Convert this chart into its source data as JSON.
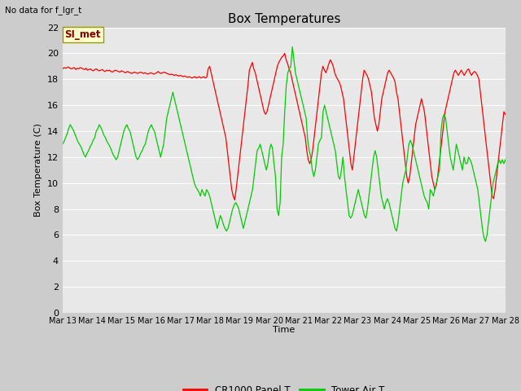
{
  "title": "Box Temperatures",
  "ylabel": "Box Temperature (C)",
  "xlabel": "Time",
  "top_left_text": "No data for f_lgr_t",
  "annotation_text": "SI_met",
  "annotation_bg": "#ffffcc",
  "annotation_border": "#999900",
  "annotation_text_color": "#880000",
  "ylim": [
    0,
    22
  ],
  "yticks": [
    0,
    2,
    4,
    6,
    8,
    10,
    12,
    14,
    16,
    18,
    20,
    22
  ],
  "fig_bg": "#cccccc",
  "axes_bg": "#e8e8e8",
  "grid_color": "#ffffff",
  "line1_color": "#ff0000",
  "line2_color": "#00cc00",
  "legend_label1": "CR1000 Panel T",
  "legend_label2": "Tower Air T",
  "xtick_labels": [
    "Mar 13",
    "Mar 14",
    "Mar 15",
    "Mar 16",
    "Mar 17",
    "Mar 18",
    "Mar 19",
    "Mar 20",
    "Mar 21",
    "Mar 22",
    "Mar 23",
    "Mar 24",
    "Mar 25",
    "Mar 26",
    "Mar 27",
    "Mar 28"
  ],
  "red_data": [
    18.8,
    18.9,
    18.85,
    18.9,
    18.95,
    18.85,
    18.8,
    18.85,
    18.9,
    18.75,
    18.85,
    18.8,
    18.9,
    18.85,
    18.8,
    18.75,
    18.85,
    18.7,
    18.75,
    18.8,
    18.7,
    18.65,
    18.75,
    18.8,
    18.7,
    18.65,
    18.7,
    18.75,
    18.65,
    18.6,
    18.7,
    18.65,
    18.7,
    18.6,
    18.55,
    18.65,
    18.7,
    18.65,
    18.6,
    18.55,
    18.65,
    18.6,
    18.55,
    18.5,
    18.6,
    18.55,
    18.5,
    18.45,
    18.5,
    18.55,
    18.5,
    18.45,
    18.5,
    18.55,
    18.5,
    18.45,
    18.5,
    18.45,
    18.4,
    18.45,
    18.5,
    18.45,
    18.4,
    18.45,
    18.5,
    18.6,
    18.5,
    18.45,
    18.5,
    18.55,
    18.5,
    18.45,
    18.4,
    18.35,
    18.4,
    18.35,
    18.3,
    18.35,
    18.3,
    18.25,
    18.3,
    18.25,
    18.2,
    18.25,
    18.2,
    18.15,
    18.2,
    18.15,
    18.1,
    18.15,
    18.2,
    18.1,
    18.15,
    18.2,
    18.1,
    18.15,
    18.2,
    18.1,
    18.15,
    18.8,
    19.0,
    18.5,
    18.0,
    17.5,
    17.0,
    16.5,
    16.0,
    15.5,
    15.0,
    14.5,
    14.0,
    13.5,
    12.5,
    11.5,
    10.5,
    9.5,
    9.0,
    8.7,
    9.5,
    10.5,
    11.5,
    12.5,
    13.5,
    14.5,
    15.5,
    16.5,
    17.5,
    18.7,
    19.0,
    19.3,
    18.8,
    18.5,
    18.0,
    17.5,
    17.0,
    16.5,
    16.0,
    15.5,
    15.3,
    15.5,
    16.0,
    16.5,
    17.0,
    17.5,
    18.0,
    18.5,
    19.0,
    19.3,
    19.5,
    19.7,
    19.8,
    20.0,
    19.5,
    19.2,
    18.8,
    18.5,
    18.0,
    17.5,
    17.0,
    16.5,
    16.0,
    15.5,
    15.0,
    14.5,
    14.0,
    13.5,
    12.5,
    11.8,
    11.5,
    11.8,
    12.5,
    13.5,
    14.5,
    15.5,
    16.5,
    17.5,
    18.5,
    19.0,
    18.7,
    18.5,
    18.8,
    19.2,
    19.5,
    19.3,
    19.0,
    18.5,
    18.2,
    18.0,
    17.8,
    17.5,
    17.0,
    16.5,
    15.5,
    14.5,
    13.5,
    12.5,
    11.5,
    11.0,
    12.0,
    13.0,
    14.0,
    15.0,
    16.0,
    17.0,
    18.0,
    18.7,
    18.5,
    18.3,
    18.0,
    17.5,
    17.0,
    16.0,
    15.0,
    14.5,
    14.0,
    14.5,
    15.5,
    16.5,
    17.0,
    17.5,
    18.0,
    18.5,
    18.7,
    18.5,
    18.3,
    18.1,
    17.8,
    17.0,
    16.5,
    15.5,
    14.5,
    13.5,
    12.5,
    11.5,
    10.5,
    10.0,
    10.5,
    11.5,
    12.5,
    13.5,
    14.5,
    15.0,
    15.5,
    16.0,
    16.5,
    16.0,
    15.5,
    14.5,
    13.5,
    12.5,
    11.5,
    10.5,
    10.0,
    9.5,
    9.8,
    10.5,
    11.5,
    12.5,
    13.5,
    14.5,
    15.5,
    16.0,
    16.5,
    17.0,
    17.5,
    18.0,
    18.5,
    18.7,
    18.5,
    18.3,
    18.5,
    18.7,
    18.5,
    18.3,
    18.5,
    18.7,
    18.8,
    18.5,
    18.3,
    18.5,
    18.6,
    18.5,
    18.3,
    18.0,
    17.0,
    16.0,
    15.0,
    14.0,
    13.0,
    12.0,
    11.0,
    10.0,
    9.0,
    8.8,
    9.5,
    10.5,
    11.5,
    12.5,
    13.5,
    14.5,
    15.5,
    15.3
  ],
  "green_data": [
    13.0,
    13.2,
    13.5,
    13.8,
    14.2,
    14.5,
    14.3,
    14.1,
    13.8,
    13.5,
    13.2,
    13.0,
    12.8,
    12.5,
    12.2,
    12.0,
    12.3,
    12.5,
    12.8,
    13.0,
    13.3,
    13.5,
    14.0,
    14.2,
    14.5,
    14.3,
    14.0,
    13.7,
    13.5,
    13.2,
    13.0,
    12.8,
    12.5,
    12.2,
    12.0,
    11.8,
    12.0,
    12.5,
    13.0,
    13.5,
    14.0,
    14.3,
    14.5,
    14.2,
    14.0,
    13.5,
    13.0,
    12.5,
    12.0,
    11.8,
    12.0,
    12.3,
    12.5,
    12.8,
    13.0,
    13.5,
    14.0,
    14.3,
    14.5,
    14.2,
    14.0,
    13.5,
    13.0,
    12.5,
    12.0,
    12.5,
    13.0,
    14.0,
    15.0,
    15.5,
    16.0,
    16.5,
    17.0,
    16.5,
    16.0,
    15.5,
    15.0,
    14.5,
    14.0,
    13.5,
    13.0,
    12.5,
    12.0,
    11.5,
    11.0,
    10.5,
    10.0,
    9.7,
    9.5,
    9.3,
    9.0,
    9.5,
    9.2,
    9.0,
    9.5,
    9.3,
    9.0,
    8.5,
    8.0,
    7.5,
    7.0,
    6.5,
    7.0,
    7.5,
    7.2,
    6.8,
    6.5,
    6.3,
    6.5,
    7.0,
    7.5,
    8.0,
    8.3,
    8.5,
    8.3,
    8.0,
    7.5,
    7.0,
    6.5,
    7.0,
    7.5,
    8.0,
    8.5,
    9.0,
    9.5,
    10.5,
    11.5,
    12.5,
    12.7,
    13.0,
    12.5,
    12.0,
    11.5,
    11.0,
    11.5,
    12.5,
    13.0,
    12.7,
    11.5,
    10.5,
    8.0,
    7.5,
    8.5,
    12.0,
    13.0,
    15.5,
    17.5,
    18.5,
    18.8,
    19.0,
    20.5,
    19.5,
    18.5,
    18.0,
    17.5,
    17.0,
    16.5,
    16.0,
    15.5,
    15.0,
    13.3,
    12.5,
    12.0,
    11.0,
    10.5,
    11.0,
    12.0,
    13.0,
    13.3,
    13.5,
    15.5,
    16.0,
    15.5,
    15.0,
    14.5,
    14.0,
    13.5,
    13.0,
    12.5,
    11.5,
    10.5,
    10.3,
    11.0,
    12.0,
    10.5,
    9.5,
    8.5,
    7.5,
    7.3,
    7.5,
    8.0,
    8.5,
    9.0,
    9.5,
    9.0,
    8.5,
    8.0,
    7.5,
    7.3,
    8.0,
    9.0,
    10.0,
    11.0,
    12.0,
    12.5,
    12.0,
    11.0,
    10.0,
    9.0,
    8.5,
    8.0,
    8.5,
    8.8,
    8.5,
    8.0,
    7.5,
    7.0,
    6.5,
    6.3,
    7.0,
    8.0,
    9.0,
    10.0,
    10.5,
    11.0,
    12.0,
    13.0,
    13.3,
    13.0,
    12.5,
    12.0,
    11.5,
    11.0,
    10.5,
    10.0,
    9.5,
    9.0,
    8.7,
    8.5,
    8.0,
    9.5,
    9.3,
    9.0,
    9.5,
    10.0,
    10.5,
    11.0,
    14.0,
    15.0,
    15.3,
    15.0,
    14.0,
    13.0,
    12.0,
    11.5,
    11.0,
    12.0,
    13.0,
    12.5,
    12.0,
    11.5,
    11.0,
    12.0,
    11.5,
    11.5,
    12.0,
    11.8,
    11.5,
    11.0,
    10.5,
    10.0,
    9.5,
    8.5,
    7.5,
    6.5,
    5.8,
    5.5,
    6.0,
    7.0,
    8.0,
    9.0,
    10.0,
    10.5,
    11.0,
    11.5,
    11.8,
    11.5,
    11.8,
    11.5,
    11.8
  ]
}
